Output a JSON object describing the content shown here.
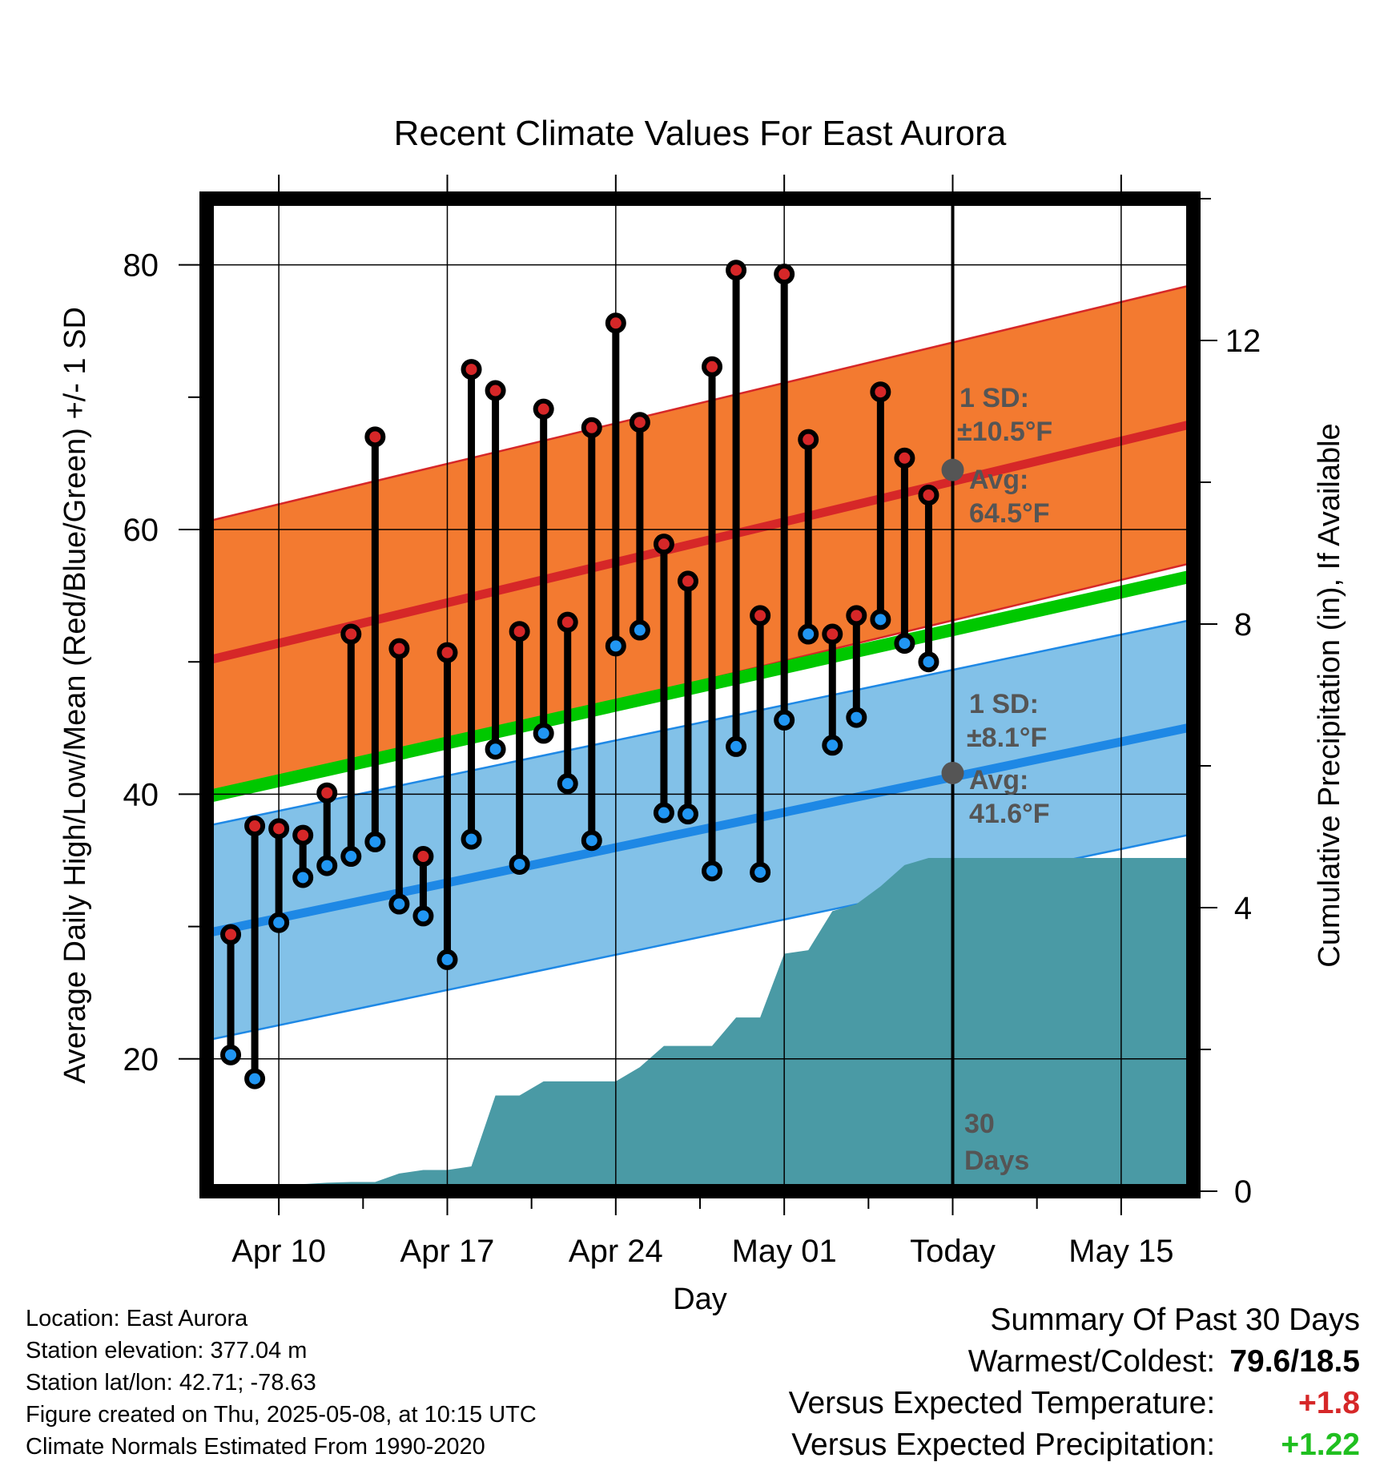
{
  "chart_data": {
    "type": "line",
    "title": "Recent Climate Values For East Aurora",
    "xlabel": "Day",
    "ylabel": "Average Daily High/Low/Mean (Red/Blue/Green) +/- 1 SD",
    "y2label": "Cumulative Precipitation (in), If Available",
    "ylim": [
      10,
      85
    ],
    "y2lim": [
      0,
      14
    ],
    "y_ticks": [
      "20",
      "40",
      "60",
      "80"
    ],
    "y2_ticks": [
      "0",
      "4",
      "8",
      "12"
    ],
    "x_tick_labels": [
      "Apr 10",
      "Apr 17",
      "Apr 24",
      "May 01",
      "Today",
      "May 15"
    ],
    "x_ticks": [
      "2025-04-10",
      "2025-04-17",
      "2025-04-24",
      "2025-05-01",
      "2025-05-08",
      "2025-05-15"
    ],
    "x_range": [
      "2025-04-07",
      "2025-05-18"
    ],
    "today": "2025-05-08",
    "dates": [
      "2025-04-08",
      "2025-04-09",
      "2025-04-10",
      "2025-04-11",
      "2025-04-12",
      "2025-04-13",
      "2025-04-14",
      "2025-04-15",
      "2025-04-16",
      "2025-04-17",
      "2025-04-18",
      "2025-04-19",
      "2025-04-20",
      "2025-04-21",
      "2025-04-22",
      "2025-04-23",
      "2025-04-24",
      "2025-04-25",
      "2025-04-26",
      "2025-04-27",
      "2025-04-28",
      "2025-04-29",
      "2025-04-30",
      "2025-05-01",
      "2025-05-02",
      "2025-05-03",
      "2025-05-04",
      "2025-05-05",
      "2025-05-06",
      "2025-05-07"
    ],
    "series": [
      {
        "name": "High",
        "color": "#d62728",
        "values": [
          29.4,
          37.6,
          37.4,
          36.9,
          40.1,
          52.1,
          67.0,
          51.0,
          35.3,
          50.7,
          72.1,
          70.5,
          52.3,
          69.1,
          53.0,
          67.7,
          75.6,
          68.1,
          58.9,
          56.1,
          72.3,
          79.6,
          53.5,
          79.3,
          66.8,
          52.1,
          53.5,
          70.4,
          65.4,
          62.6
        ]
      },
      {
        "name": "Low",
        "color": "#2196f3",
        "values": [
          20.3,
          18.5,
          30.3,
          33.7,
          34.6,
          35.3,
          36.4,
          31.7,
          30.8,
          27.5,
          36.6,
          43.4,
          34.7,
          44.6,
          40.8,
          36.5,
          51.2,
          52.4,
          38.6,
          38.5,
          34.2,
          43.6,
          34.1,
          45.6,
          52.1,
          43.7,
          45.8,
          53.2,
          51.4,
          50.0
        ]
      }
    ],
    "normal_high": {
      "start": 50.1,
      "end": 68.0,
      "sd_label": "1 SD:",
      "sd_value": "±10.5°F",
      "sd": 10.5,
      "avg_label": "Avg:",
      "avg_value": "64.5°F",
      "avg": 64.5,
      "color": "#d62728",
      "band_color": "#f37a30"
    },
    "normal_low": {
      "start": 29.5,
      "end": 45.1,
      "sd_label": "1 SD:",
      "sd_value": "±8.1°F",
      "sd": 8.1,
      "avg_label": "Avg:",
      "avg_value": "41.6°F",
      "avg": 41.6,
      "color": "#1e88e5",
      "band_color": "#82c1e8"
    },
    "normal_mean": {
      "start": 39.8,
      "end": 56.5,
      "color": "#00c800"
    },
    "precip": {
      "color": "#4a9aa5",
      "dates": [
        "2025-04-07",
        "2025-04-08",
        "2025-04-09",
        "2025-04-10",
        "2025-04-11",
        "2025-04-12",
        "2025-04-13",
        "2025-04-14",
        "2025-04-15",
        "2025-04-16",
        "2025-04-17",
        "2025-04-18",
        "2025-04-19",
        "2025-04-20",
        "2025-04-21",
        "2025-04-22",
        "2025-04-23",
        "2025-04-24",
        "2025-04-25",
        "2025-04-26",
        "2025-04-27",
        "2025-04-28",
        "2025-04-29",
        "2025-04-30",
        "2025-05-01",
        "2025-05-02",
        "2025-05-03",
        "2025-05-04",
        "2025-05-05",
        "2025-05-06",
        "2025-05-07",
        "2025-05-08",
        "2025-05-18"
      ],
      "values": [
        0,
        0,
        0,
        0,
        0.1,
        0.12,
        0.13,
        0.13,
        0.25,
        0.3,
        0.3,
        0.35,
        1.35,
        1.35,
        1.55,
        1.55,
        1.55,
        1.55,
        1.75,
        2.05,
        2.05,
        2.05,
        2.45,
        2.45,
        3.35,
        3.4,
        3.95,
        4.05,
        4.3,
        4.6,
        4.7,
        4.7,
        4.7
      ]
    },
    "window_label_1": "30",
    "window_label_2": "Days",
    "grid": true
  },
  "footer": {
    "location": "Location: East Aurora",
    "elevation": "Station elevation: 377.04 m",
    "latlon": "Station lat/lon: 42.71; -78.63",
    "created": "Figure created on Thu, 2025-05-08, at 10:15 UTC",
    "normals": "Climate Normals Estimated From 1990-2020"
  },
  "summary": {
    "heading": "Summary Of Past 30 Days",
    "warmest_label": "Warmest/Coldest:",
    "warmest_value": "79.6/18.5",
    "temp_label": "Versus Expected Temperature:",
    "temp_value": "+1.8",
    "temp_color": "#d62728",
    "precip_label": "Versus Expected Precipitation:",
    "precip_value": "+1.22",
    "precip_color": "#1fbf1f"
  }
}
